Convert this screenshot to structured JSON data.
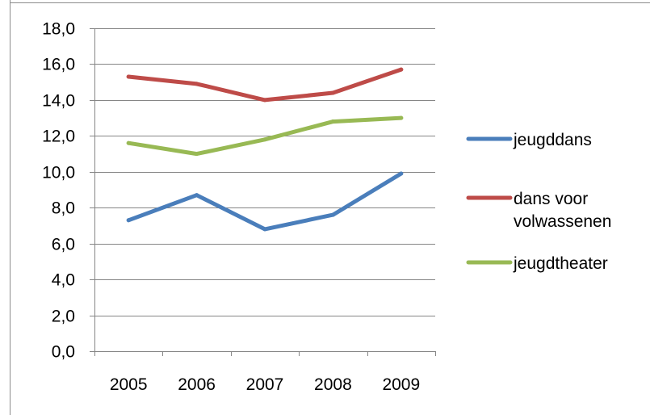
{
  "chart_data": {
    "type": "line",
    "title": "",
    "xlabel": "",
    "ylabel": "",
    "categories": [
      "2005",
      "2006",
      "2007",
      "2008",
      "2009"
    ],
    "ylim": [
      0,
      18
    ],
    "yticks": [
      "0,0",
      "2,0",
      "4,0",
      "6,0",
      "8,0",
      "10,0",
      "12,0",
      "14,0",
      "16,0",
      "18,0"
    ],
    "grid": true,
    "legend_position": "right",
    "series": [
      {
        "name": "jeugddans",
        "color": "#4a7ebb",
        "values": [
          7.3,
          8.7,
          6.8,
          7.6,
          9.9
        ]
      },
      {
        "name": "dans voor volwassenen",
        "legend_lines": [
          "dans voor",
          "volwassenen"
        ],
        "color": "#be4b48",
        "values": [
          15.3,
          14.9,
          14.0,
          14.4,
          15.7
        ]
      },
      {
        "name": "jeugdtheater",
        "color": "#98b954",
        "values": [
          11.6,
          11.0,
          11.8,
          12.8,
          13.0
        ]
      }
    ]
  }
}
